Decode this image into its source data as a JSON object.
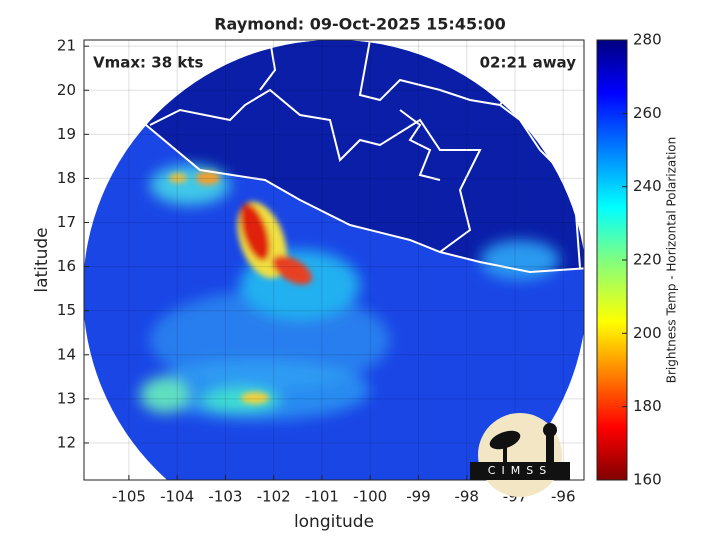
{
  "map": {
    "title": "Raymond: 09-Oct-2025 15:45:00",
    "annotations": {
      "left": "Vmax: 38 kts",
      "right": "02:21 away"
    },
    "x_label": "longitude",
    "y_label": "latitude",
    "xlim": [
      -105.93,
      -95.57
    ],
    "ylim": [
      11.16,
      21.14
    ],
    "xticks": [
      -105,
      -104,
      -103,
      -102,
      -101,
      -100,
      -99,
      -98,
      -97,
      -96
    ],
    "yticks": [
      12,
      13,
      14,
      15,
      16,
      17,
      18,
      19,
      20,
      21
    ],
    "grid": true,
    "colorbar": {
      "label": "Brightness Temp - Horizontal Polarization",
      "lim": [
        160,
        280
      ],
      "ticks": [
        160,
        180,
        200,
        220,
        240,
        260,
        280
      ]
    },
    "logo": "CIMSS"
  }
}
